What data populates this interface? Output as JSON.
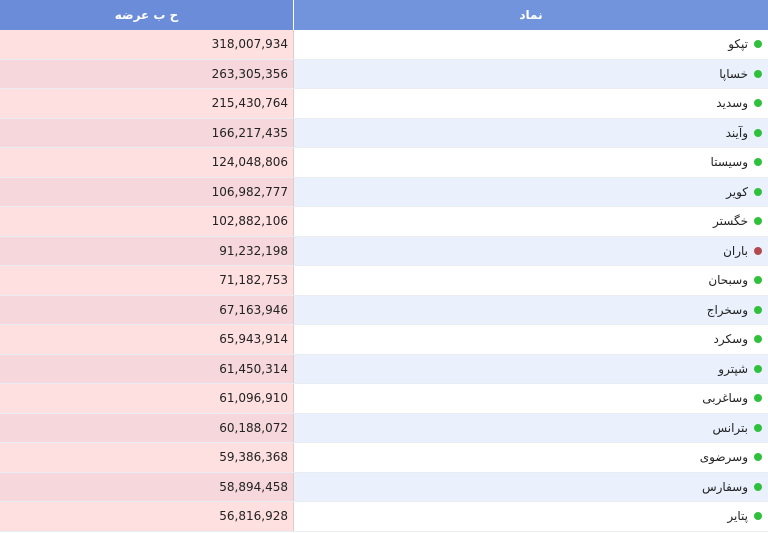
{
  "table": {
    "headers": {
      "value": "ح ب عرضه",
      "symbol": "نماد"
    },
    "rows": [
      {
        "symbol": "تپکو",
        "value": "318,007,934",
        "status": "green"
      },
      {
        "symbol": "خساپا",
        "value": "263,305,356",
        "status": "green"
      },
      {
        "symbol": "وسدید",
        "value": "215,430,764",
        "status": "green"
      },
      {
        "symbol": "وآیند",
        "value": "166,217,435",
        "status": "green"
      },
      {
        "symbol": "وسیستا",
        "value": "124,048,806",
        "status": "green"
      },
      {
        "symbol": "کویر",
        "value": "106,982,777",
        "status": "green"
      },
      {
        "symbol": "خگستر",
        "value": "102,882,106",
        "status": "green"
      },
      {
        "symbol": "باران",
        "value": "91,232,198",
        "status": "red"
      },
      {
        "symbol": "وسبحان",
        "value": "71,182,753",
        "status": "green"
      },
      {
        "symbol": "وسخراج",
        "value": "67,163,946",
        "status": "green"
      },
      {
        "symbol": "وسکرد",
        "value": "65,943,914",
        "status": "green"
      },
      {
        "symbol": "شپترو",
        "value": "61,450,314",
        "status": "green"
      },
      {
        "symbol": "وساغربی",
        "value": "61,096,910",
        "status": "green"
      },
      {
        "symbol": "بترانس",
        "value": "60,188,072",
        "status": "green"
      },
      {
        "symbol": "وسرضوی",
        "value": "59,386,368",
        "status": "green"
      },
      {
        "symbol": "وسفارس",
        "value": "58,894,458",
        "status": "green"
      },
      {
        "symbol": "پتایر",
        "value": "56,816,928",
        "status": "green"
      }
    ]
  },
  "colors": {
    "header_bg": "#6f8fd9",
    "value_cell_bg": "#ffe0e1",
    "row_alt_bg": "#eaf1fd",
    "status_green": "#2fc13c",
    "status_red": "#b24b4f"
  }
}
